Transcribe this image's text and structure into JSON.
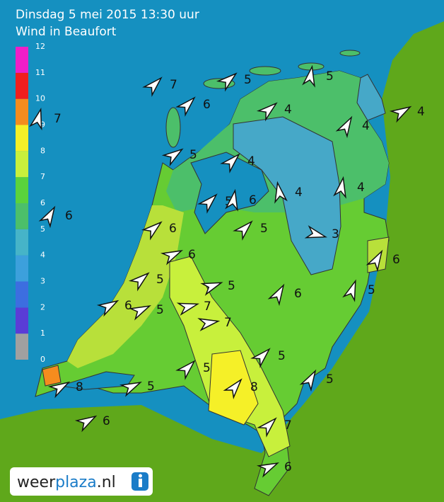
{
  "header": {
    "title": "Dinsdag 5 mei 2015 13:30 uur",
    "subtitle": "Wind in Beaufort"
  },
  "legend": {
    "labels": [
      0,
      1,
      2,
      3,
      4,
      5,
      6,
      7,
      8,
      9,
      10,
      11,
      12
    ],
    "colors": [
      "#a0a0a0",
      "#5a3cd6",
      "#3c6ee0",
      "#3ca0dc",
      "#46b4c8",
      "#4cbf6a",
      "#5ad23c",
      "#c8f03c",
      "#f5f028",
      "#f58c1e",
      "#f01e1e",
      "#f01ec8",
      "#b45ad2"
    ]
  },
  "stations": [
    {
      "value": 7
    },
    {
      "value": 6
    },
    {
      "value": 5
    },
    {
      "value": 5
    },
    {
      "value": 4
    },
    {
      "value": 4
    },
    {
      "value": 4
    },
    {
      "value": 7
    },
    {
      "value": 5
    },
    {
      "value": 4
    },
    {
      "value": 4
    },
    {
      "value": 4
    },
    {
      "value": 5
    },
    {
      "value": 6
    },
    {
      "value": 6
    },
    {
      "value": 5
    },
    {
      "value": 6
    },
    {
      "value": 3
    },
    {
      "value": 6
    },
    {
      "value": 6
    },
    {
      "value": 5
    },
    {
      "value": 5
    },
    {
      "value": 6
    },
    {
      "value": 5
    },
    {
      "value": 6
    },
    {
      "value": 5
    },
    {
      "value": 7
    },
    {
      "value": 7
    },
    {
      "value": 5
    },
    {
      "value": 5
    },
    {
      "value": 5
    },
    {
      "value": 8
    },
    {
      "value": 5
    },
    {
      "value": 8
    },
    {
      "value": 6
    },
    {
      "value": 7
    },
    {
      "value": 6
    }
  ],
  "logo": {
    "parts": [
      "weer",
      "plaza",
      ".nl"
    ]
  }
}
